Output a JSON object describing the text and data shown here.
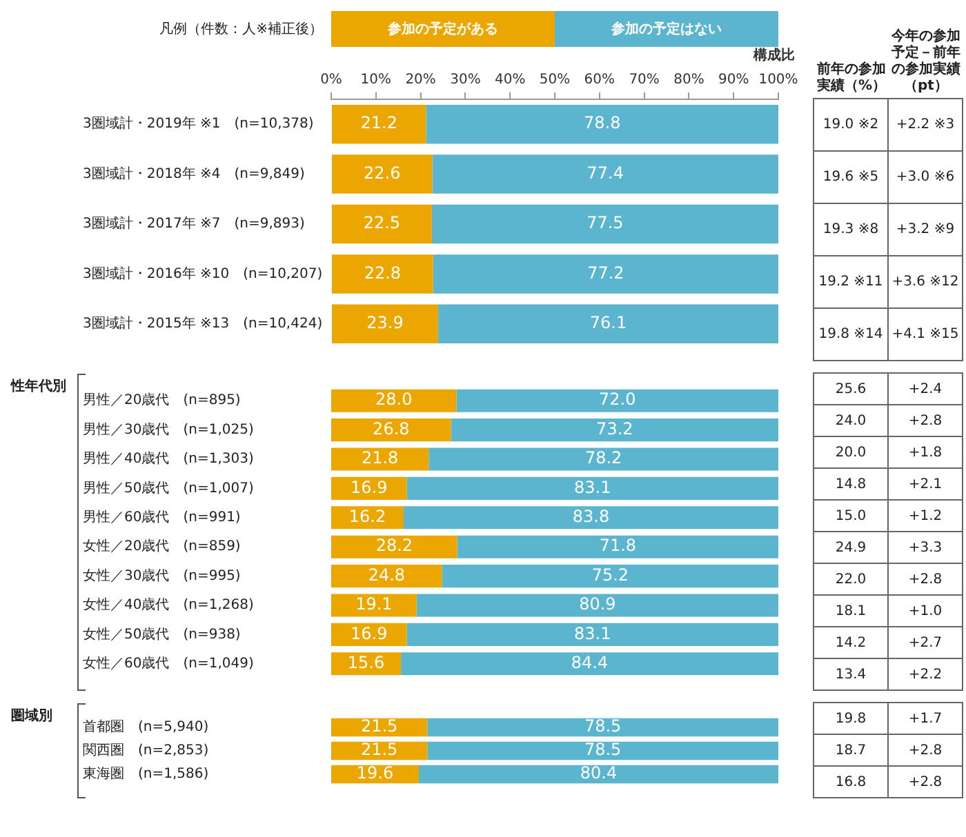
{
  "chart_data": [
    {
      "type": "bar",
      "orientation": "horizontal",
      "stacked": true,
      "xlabel": "構成比",
      "legend_title": "凡例（件数：人※補正後）",
      "legend": "top",
      "grid": false,
      "categories": [
        "3圏域計・2019年 ※1　(n=10,378)",
        "3圏域計・2018年 ※4　(n=9,849)",
        "3圏域計・2017年 ※7　(n=9,893)",
        "3圏域計・2016年 ※10　(n=10,207)",
        "3圏域計・2015年 ※13　(n=10,424)"
      ],
      "xlim": [
        0,
        100
      ],
      "xticks": [
        {
          "value": 0,
          "label": "0%"
        },
        {
          "value": 10,
          "label": "10%"
        },
        {
          "value": 20,
          "label": "20%"
        },
        {
          "value": 30,
          "label": "30%"
        },
        {
          "value": 40,
          "label": "40%"
        },
        {
          "value": 50,
          "label": "50%"
        },
        {
          "value": 60,
          "label": "60%"
        },
        {
          "value": 70,
          "label": "70%"
        },
        {
          "value": 80,
          "label": "80%"
        },
        {
          "value": 90,
          "label": "90%"
        },
        {
          "value": 100,
          "label": "100%"
        }
      ],
      "series": [
        {
          "name": "参加の予定がある",
          "color": "#eba600",
          "values": [
            21.2,
            22.6,
            22.5,
            22.8,
            23.9
          ],
          "value_labels": [
            "21.2",
            "22.6",
            "22.5",
            "22.8",
            "23.9"
          ]
        },
        {
          "name": "参加の予定はない",
          "color": "#5bb5cf",
          "values": [
            78.8,
            77.4,
            77.5,
            77.2,
            76.1
          ],
          "value_labels": [
            "78.8",
            "77.4",
            "77.5",
            "77.2",
            "76.1"
          ]
        }
      ]
    },
    {
      "type": "other",
      "categories": [
        "前年の参加実績（%）",
        "今年の参加予定－前年の参加実績（pt）"
      ],
      "annotations": [
        "19.0 ※2",
        "+2.2 ※3",
        "19.6 ※5",
        "+3.0 ※6",
        "19.3 ※8",
        "+3.2 ※9",
        "19.2 ※11",
        "+3.6 ※12",
        "19.8 ※14",
        "+4.1 ※15"
      ]
    },
    {
      "type": "bar",
      "orientation": "horizontal",
      "stacked": true,
      "ylabel": "性年代別",
      "grid": false,
      "tick_labels": "y",
      "xlim": [
        0,
        100
      ],
      "categories": [
        "男性／20歳代　(n=895)",
        "男性／30歳代　(n=1,025)",
        "男性／40歳代　(n=1,303)",
        "男性／50歳代　(n=1,007)",
        "男性／60歳代　(n=991)",
        "女性／20歳代　(n=859)",
        "女性／30歳代　(n=995)",
        "女性／40歳代　(n=1,268)",
        "女性／50歳代　(n=938)",
        "女性／60歳代　(n=1,049)"
      ],
      "series": [
        {
          "color": "#eba600",
          "values": [
            28.0,
            26.8,
            21.8,
            16.9,
            16.2,
            28.2,
            24.8,
            19.1,
            16.9,
            15.6
          ],
          "value_labels": [
            "28.0",
            "26.8",
            "21.8",
            "16.9",
            "16.2",
            "28.2",
            "24.8",
            "19.1",
            "16.9",
            "15.6"
          ]
        },
        {
          "color": "#5bb5cf",
          "values": [
            72.0,
            73.2,
            78.2,
            83.1,
            83.8,
            71.8,
            75.2,
            80.9,
            83.1,
            84.4
          ],
          "value_labels": [
            "72.0",
            "73.2",
            "78.2",
            "83.1",
            "83.8",
            "71.8",
            "75.2",
            "80.9",
            "83.1",
            "84.4"
          ]
        }
      ]
    },
    {
      "type": "other",
      "annotations": [
        "25.6",
        "+2.4",
        "24.0",
        "+2.8",
        "20.0",
        "+1.8",
        "14.8",
        "+2.1",
        "15.0",
        "+1.2",
        "24.9",
        "+3.3",
        "22.0",
        "+2.8",
        "18.1",
        "+1.0",
        "14.2",
        "+2.7",
        "13.4",
        "+2.2"
      ]
    },
    {
      "type": "bar",
      "orientation": "horizontal",
      "stacked": true,
      "ylabel": "圏域別",
      "grid": false,
      "tick_labels": "y",
      "xlim": [
        0,
        100
      ],
      "categories": [
        "首都圏　(n=5,940)",
        "関西圏　(n=2,853)",
        "東海圏　(n=1,586)"
      ],
      "series": [
        {
          "color": "#eba600",
          "values": [
            21.5,
            21.5,
            19.6
          ],
          "value_labels": [
            "21.5",
            "21.5",
            "19.6"
          ]
        },
        {
          "color": "#5bb5cf",
          "values": [
            78.5,
            78.5,
            80.4
          ],
          "value_labels": [
            "78.5",
            "78.5",
            "80.4"
          ]
        }
      ]
    },
    {
      "type": "other",
      "annotations": [
        "19.8",
        "+1.7",
        "18.7",
        "+2.8",
        "16.8",
        "+2.8"
      ]
    }
  ]
}
